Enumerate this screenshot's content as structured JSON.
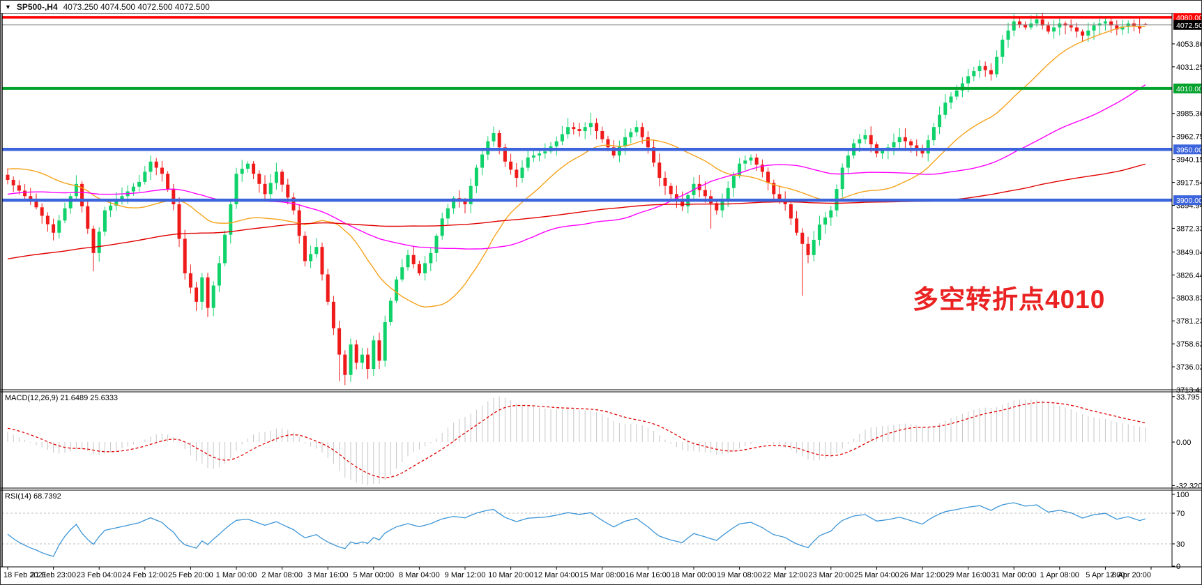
{
  "window": {
    "collapse_icon": "▼",
    "title_symbol": "SP500-,H4",
    "title_ohlc": "4073.250 4074.500 4072.500 4072.500"
  },
  "colors": {
    "bull": "#0fd26a",
    "bear": "#ef1a1a",
    "macd_hist": "#c6c6c6",
    "macd_signal": "#e00000",
    "rsi_line": "#3d95d6",
    "rsi_levels": "#bcbcbc",
    "current_price_line": "#7a7a7a",
    "axis_text": "#000000"
  },
  "main_chart": {
    "annotation": {
      "text": "多空转折点4010",
      "color": "#ea2222"
    },
    "price_axis_ticks": [
      "4053.860",
      "4031.255",
      "3985.360",
      "3962.755",
      "3940.150",
      "3917.545",
      "3894.940",
      "3872.335",
      "3849.045",
      "3826.440",
      "3803.835",
      "3781.230",
      "3758.625",
      "3736.020",
      "3713.415"
    ],
    "price_badges": [
      {
        "text": "4080.000",
        "price": 4080,
        "bg": "#ff0000"
      },
      {
        "text": "4072.500",
        "price": 4072.5,
        "bg": "#000000"
      },
      {
        "text": "4010.000",
        "price": 4010,
        "bg": "#00a22c"
      },
      {
        "text": "3950.000",
        "price": 3950,
        "bg": "#3c64dc"
      },
      {
        "text": "3900.000",
        "price": 3900,
        "bg": "#3c64dc"
      }
    ],
    "hlines": [
      {
        "price": 4080,
        "color": "#ff0000",
        "w": 3.5
      },
      {
        "price": 4072.5,
        "color": "#7a7a7a",
        "w": 1
      },
      {
        "price": 4010,
        "color": "#00a22c",
        "w": 4
      },
      {
        "price": 3950,
        "color": "#3c64dc",
        "w": 4.5
      },
      {
        "price": 3900,
        "color": "#3c64dc",
        "w": 4.5
      }
    ]
  },
  "chart_data": {
    "type": "candlestick",
    "symbol": "SP500-",
    "timeframe": "H4",
    "title": "SP500-,H4 4073.250 4074.500 4072.500 4072.500",
    "ylim": [
      3713.415,
      4084.0
    ],
    "num_candles": 200,
    "candles_per_x_label": 8,
    "x_labels": [
      "18 Feb 2021",
      "21 Feb 23:00",
      "23 Feb 04:00",
      "24 Feb 12:00",
      "25 Feb 20:00",
      "1 Mar 00:00",
      "2 Mar 08:00",
      "3 Mar 16:00",
      "5 Mar 00:00",
      "8 Mar 04:00",
      "9 Mar 12:00",
      "10 Mar 20:00",
      "12 Mar 04:00",
      "15 Mar 08:00",
      "16 Mar 16:00",
      "18 Mar 00:00",
      "19 Mar 08:00",
      "22 Mar 12:00",
      "23 Mar 20:00",
      "25 Mar 04:00",
      "26 Mar 12:00",
      "29 Mar 16:00",
      "31 Mar 00:00",
      "1 Apr 08:00",
      "5 Apr 12:00",
      "6 Apr 20:00"
    ],
    "price_anchors": [
      [
        0,
        3920
      ],
      [
        3,
        3904
      ],
      [
        5,
        3893
      ],
      [
        8,
        3868
      ],
      [
        12,
        3916
      ],
      [
        14,
        3872
      ],
      [
        15,
        3848
      ],
      [
        17,
        3890
      ],
      [
        20,
        3904
      ],
      [
        23,
        3918
      ],
      [
        25,
        3938
      ],
      [
        27,
        3926
      ],
      [
        29,
        3896
      ],
      [
        31,
        3828
      ],
      [
        33,
        3800
      ],
      [
        34,
        3824
      ],
      [
        35,
        3794
      ],
      [
        37,
        3838
      ],
      [
        38,
        3866
      ],
      [
        40,
        3926
      ],
      [
        42,
        3936
      ],
      [
        45,
        3906
      ],
      [
        47,
        3928
      ],
      [
        50,
        3890
      ],
      [
        52,
        3840
      ],
      [
        54,
        3854
      ],
      [
        56,
        3800
      ],
      [
        58,
        3748
      ],
      [
        59,
        3728
      ],
      [
        60,
        3758
      ],
      [
        61,
        3740
      ],
      [
        62,
        3748
      ],
      [
        63,
        3734
      ],
      [
        64,
        3762
      ],
      [
        65,
        3742
      ],
      [
        66,
        3780
      ],
      [
        68,
        3822
      ],
      [
        70,
        3846
      ],
      [
        72,
        3828
      ],
      [
        74,
        3848
      ],
      [
        76,
        3882
      ],
      [
        78,
        3902
      ],
      [
        80,
        3896
      ],
      [
        82,
        3932
      ],
      [
        84,
        3958
      ],
      [
        85,
        3966
      ],
      [
        87,
        3938
      ],
      [
        89,
        3922
      ],
      [
        91,
        3942
      ],
      [
        94,
        3948
      ],
      [
        96,
        3958
      ],
      [
        98,
        3972
      ],
      [
        100,
        3968
      ],
      [
        102,
        3976
      ],
      [
        104,
        3960
      ],
      [
        106,
        3944
      ],
      [
        108,
        3962
      ],
      [
        110,
        3972
      ],
      [
        112,
        3952
      ],
      [
        114,
        3922
      ],
      [
        116,
        3906
      ],
      [
        118,
        3894
      ],
      [
        120,
        3916
      ],
      [
        122,
        3904
      ],
      [
        124,
        3890
      ],
      [
        126,
        3912
      ],
      [
        128,
        3936
      ],
      [
        130,
        3942
      ],
      [
        132,
        3928
      ],
      [
        134,
        3906
      ],
      [
        136,
        3896
      ],
      [
        138,
        3868
      ],
      [
        140,
        3846
      ],
      [
        142,
        3876
      ],
      [
        144,
        3890
      ],
      [
        146,
        3932
      ],
      [
        148,
        3956
      ],
      [
        150,
        3964
      ],
      [
        152,
        3946
      ],
      [
        154,
        3952
      ],
      [
        156,
        3962
      ],
      [
        158,
        3954
      ],
      [
        160,
        3946
      ],
      [
        162,
        3972
      ],
      [
        164,
        3996
      ],
      [
        166,
        4008
      ],
      [
        168,
        4022
      ],
      [
        170,
        4032
      ],
      [
        172,
        4024
      ],
      [
        174,
        4058
      ],
      [
        176,
        4076
      ],
      [
        178,
        4070
      ],
      [
        180,
        4078
      ],
      [
        182,
        4066
      ],
      [
        184,
        4074
      ],
      [
        186,
        4070
      ],
      [
        188,
        4062
      ],
      [
        190,
        4072
      ],
      [
        192,
        4076
      ],
      [
        194,
        4068
      ],
      [
        196,
        4074
      ],
      [
        198,
        4069
      ],
      [
        199,
        4072.5
      ]
    ],
    "wick_lows": [
      {
        "i": 15,
        "low": 3830
      },
      {
        "i": 35,
        "low": 3785
      },
      {
        "i": 58,
        "low": 3722
      },
      {
        "i": 59,
        "low": 3718
      },
      {
        "i": 63,
        "low": 3724
      },
      {
        "i": 123,
        "low": 3872
      },
      {
        "i": 139,
        "low": 3806
      },
      {
        "i": 141,
        "low": 3842
      }
    ],
    "wick_highs": [
      {
        "i": 25,
        "high": 3944
      },
      {
        "i": 85,
        "high": 3970
      },
      {
        "i": 102,
        "high": 3986
      },
      {
        "i": 176,
        "high": 4083
      },
      {
        "i": 180,
        "high": 4081
      }
    ],
    "last_candle": {
      "open": 4073.25,
      "high": 4074.5,
      "low": 4072.5,
      "close": 4072.5
    },
    "moving_averages": [
      {
        "name": "ma-fast",
        "period": 22,
        "color": "#f6a21a"
      },
      {
        "name": "ma-mid",
        "period": 58,
        "color": "#ff00ff"
      },
      {
        "name": "ma-slow",
        "period": 165,
        "color": "#e10000"
      }
    ],
    "macd": {
      "label": "MACD(12,26,9) 21.6489 25.6333",
      "fast": 12,
      "slow": 26,
      "signal": 9,
      "current_macd": 21.6489,
      "current_signal": 25.6333,
      "axis_ticks": [
        "33.795",
        "0.00",
        "-32.3207"
      ],
      "max": 33.795,
      "min": -32.3207
    },
    "rsi": {
      "label": "RSI(14) 68.7392",
      "period": 14,
      "current": 68.7392,
      "levels": [
        70,
        30
      ],
      "axis_ticks": [
        "100",
        "70",
        "30",
        "0"
      ],
      "ylim": [
        0,
        100
      ]
    }
  }
}
